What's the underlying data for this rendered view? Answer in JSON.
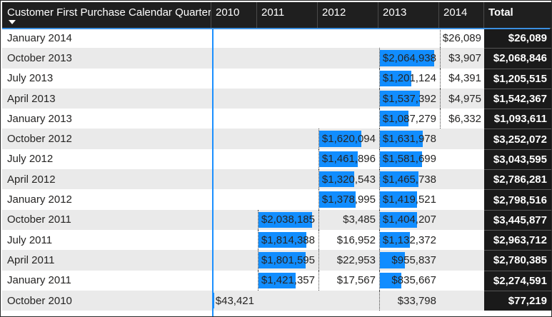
{
  "header": {
    "row_label": "Customer First Purchase Calendar Quarter",
    "columns": [
      "2010",
      "2011",
      "2012",
      "2013",
      "2014"
    ],
    "total": "Total"
  },
  "colors": {
    "bar": "#118dff",
    "header_bg": "#1f1f1f",
    "total_bg": "#1a1a1a",
    "alt_row": "#eaeaea"
  },
  "icons": {
    "sort": "sort-descending-icon"
  },
  "rows": [
    {
      "label": "January 2014",
      "cells": [
        "",
        "",
        "",
        "",
        "$26,089"
      ],
      "bars": [
        0,
        0,
        0,
        0,
        0
      ],
      "total": "$26,089"
    },
    {
      "label": "October 2013",
      "cells": [
        "",
        "",
        "",
        "$2,064,938",
        "$3,907"
      ],
      "bars": [
        0,
        0,
        0,
        1.0,
        0
      ],
      "total": "$2,068,846"
    },
    {
      "label": "July 2013",
      "cells": [
        "",
        "",
        "",
        "$1,201,124",
        "$4,391"
      ],
      "bars": [
        0,
        0,
        0,
        0.58,
        0
      ],
      "total": "$1,205,515"
    },
    {
      "label": "April 2013",
      "cells": [
        "",
        "",
        "",
        "$1,537,392",
        "$4,975"
      ],
      "bars": [
        0,
        0,
        0,
        0.74,
        0
      ],
      "total": "$1,542,367"
    },
    {
      "label": "January 2013",
      "cells": [
        "",
        "",
        "",
        "$1,087,279",
        "$6,332"
      ],
      "bars": [
        0,
        0,
        0,
        0.53,
        0
      ],
      "total": "$1,093,611"
    },
    {
      "label": "October 2012",
      "cells": [
        "",
        "",
        "$1,620,094",
        "$1,631,978",
        ""
      ],
      "bars": [
        0,
        0,
        0.78,
        0.79,
        0
      ],
      "total": "$3,252,072"
    },
    {
      "label": "July 2012",
      "cells": [
        "",
        "",
        "$1,461,896",
        "$1,581,699",
        ""
      ],
      "bars": [
        0,
        0,
        0.71,
        0.77,
        0
      ],
      "total": "$3,043,595"
    },
    {
      "label": "April 2012",
      "cells": [
        "",
        "",
        "$1,320,543",
        "$1,465,738",
        ""
      ],
      "bars": [
        0,
        0,
        0.64,
        0.71,
        0
      ],
      "total": "$2,786,281"
    },
    {
      "label": "January 2012",
      "cells": [
        "",
        "",
        "$1,378,995",
        "$1,419,521",
        ""
      ],
      "bars": [
        0,
        0,
        0.67,
        0.69,
        0
      ],
      "total": "$2,798,516"
    },
    {
      "label": "October 2011",
      "cells": [
        "",
        "$2,038,185",
        "$3,485",
        "$1,404,207",
        ""
      ],
      "bars": [
        0,
        0.99,
        0,
        0.68,
        0
      ],
      "total": "$3,445,877"
    },
    {
      "label": "July 2011",
      "cells": [
        "",
        "$1,814,388",
        "$16,952",
        "$1,132,372",
        ""
      ],
      "bars": [
        0,
        0.88,
        0,
        0.55,
        0
      ],
      "total": "$2,963,712"
    },
    {
      "label": "April 2011",
      "cells": [
        "",
        "$1,801,595",
        "$22,953",
        "$955,837",
        ""
      ],
      "bars": [
        0,
        0.87,
        0,
        0.46,
        0
      ],
      "total": "$2,780,385"
    },
    {
      "label": "January 2011",
      "cells": [
        "",
        "$1,421,357",
        "$17,567",
        "$835,667",
        ""
      ],
      "bars": [
        0,
        0.69,
        0,
        0.4,
        0
      ],
      "total": "$2,274,591"
    },
    {
      "label": "October 2010",
      "cells": [
        "$43,421",
        "",
        "",
        "$33,798",
        ""
      ],
      "bars": [
        0.02,
        0,
        0,
        0,
        0
      ],
      "total": "$77,219"
    }
  ]
}
